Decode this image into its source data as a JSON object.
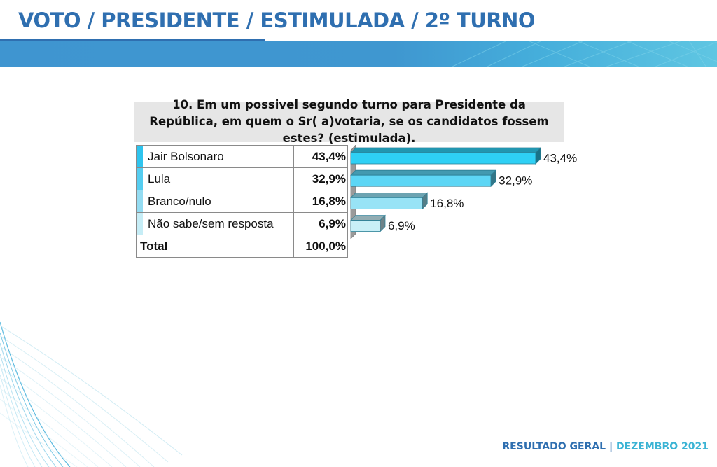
{
  "header": {
    "title": "VOTO / PRESIDENTE / ESTIMULADA / 2º TURNO"
  },
  "question": {
    "text": "10. Em um possivel segundo turno para Presidente da República, em quem o Sr( a)votaria, se os candidatos fossem estes? (estimulada)."
  },
  "table": {
    "rows": [
      {
        "label": "Jair Bolsonaro",
        "value": "43,4%",
        "color": "#2ec4ee"
      },
      {
        "label": "Lula",
        "value": "32,9%",
        "color": "#55cdf0"
      },
      {
        "label": "Branco/nulo",
        "value": "16,8%",
        "color": "#94dcf2"
      },
      {
        "label": "Não sabe/sem resposta",
        "value": "6,9%",
        "color": "#c6edf6"
      }
    ],
    "total_label": "Total",
    "total_value": "100,0%"
  },
  "chart_data": {
    "type": "bar",
    "orientation": "horizontal",
    "title": "10. Em um possivel segundo turno para Presidente da República, em quem o Sr( a)votaria, se os candidatos fossem estes? (estimulada).",
    "categories": [
      "Jair Bolsonaro",
      "Lula",
      "Branco/nulo",
      "Não sabe/sem resposta"
    ],
    "values": [
      43.4,
      32.9,
      16.8,
      6.9
    ],
    "value_labels": [
      "43,4%",
      "32,9%",
      "16,8%",
      "6,9%"
    ],
    "colors": [
      "#2ed0f5",
      "#5dd6f5",
      "#98e3f6",
      "#c9eff7"
    ],
    "xlabel": "",
    "ylabel": "",
    "xlim": [
      0,
      45
    ],
    "grid": false,
    "legend": "none",
    "style": "3d"
  },
  "footer": {
    "left": "RESULTADO GERAL",
    "separator": "|",
    "right": "DEZEMBRO 2021"
  }
}
